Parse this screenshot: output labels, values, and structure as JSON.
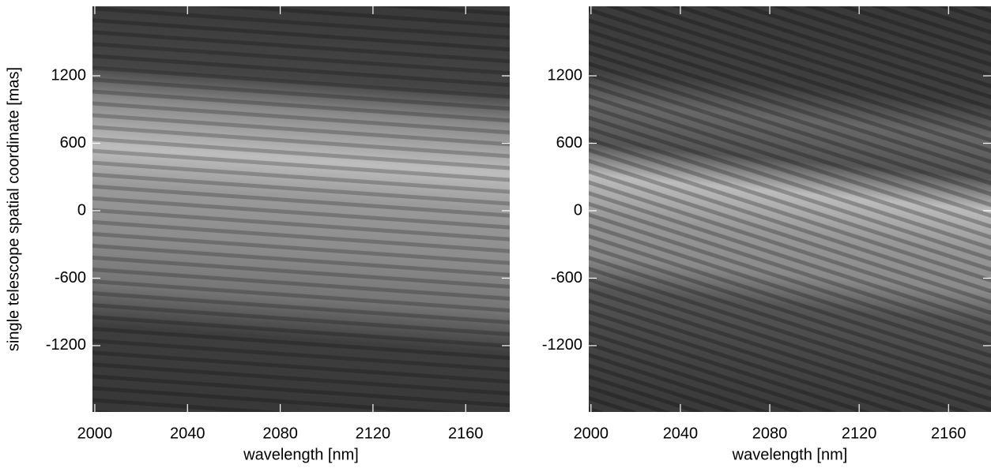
{
  "chart_data": [
    {
      "type": "image",
      "y_label": "single telescope spatial coordinate [mas]",
      "x_label": "wavelength [nm]",
      "xlim": [
        1999,
        2179
      ],
      "xticks": [
        2000,
        2040,
        2080,
        2120,
        2160
      ],
      "ylim": [
        -1790,
        1818
      ],
      "yticks": [
        -1200,
        -600,
        0,
        600,
        1200
      ]
    },
    {
      "type": "image",
      "x_label": "wavelength [nm]",
      "xlim": [
        1999,
        2179
      ],
      "xticks": [
        2000,
        2040,
        2080,
        2120,
        2160
      ],
      "ylim": [
        -1790,
        1818
      ],
      "yticks": [
        -1200,
        -600,
        0,
        600,
        1200
      ]
    }
  ]
}
